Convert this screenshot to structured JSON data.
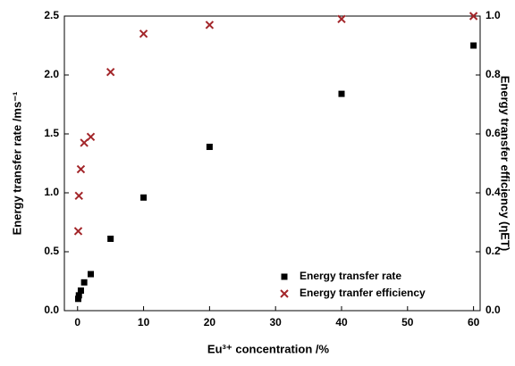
{
  "chart_data": {
    "type": "scatter",
    "xlabel": "Eu³⁺ concentration /%",
    "ylabel": "Energy transfer rate /ms⁻¹",
    "y2label": "Energy transfer efficiency (ηET)",
    "series": [
      {
        "name": "Energy transfer rate",
        "color": "#000000",
        "marker": "square",
        "x": [
          0.1,
          0.2,
          0.5,
          1,
          2,
          5,
          10,
          20,
          40,
          60
        ],
        "values": [
          0.1,
          0.13,
          0.17,
          0.24,
          0.31,
          0.61,
          0.96,
          1.39,
          1.84,
          2.25
        ]
      },
      {
        "name": "Energy tranfer efficiency",
        "color": "#a3262a",
        "marker": "x",
        "axis": "y2",
        "x": [
          0.1,
          0.2,
          0.5,
          1,
          2,
          5,
          10,
          20,
          40,
          60
        ],
        "values": [
          0.27,
          0.39,
          0.48,
          0.57,
          0.59,
          0.81,
          0.94,
          0.97,
          0.99,
          1.0
        ]
      }
    ],
    "xlim": [
      -2,
      61
    ],
    "xticks": [
      0,
      10,
      20,
      30,
      40,
      50,
      60
    ],
    "ylim": [
      0,
      2.5
    ],
    "yticks": [
      {
        "value": 0,
        "label": "0.0"
      },
      0.5,
      {
        "value": 1,
        "label": "1.0"
      },
      1.5,
      {
        "value": 2,
        "label": "2.0"
      },
      2.5
    ],
    "y2lim": [
      0,
      1
    ],
    "y2ticks": [
      {
        "value": 0,
        "label": "0.0"
      },
      0.2,
      0.4,
      0.6,
      0.8,
      {
        "value": 1,
        "label": "1.0"
      }
    ],
    "legend": "lower right"
  }
}
